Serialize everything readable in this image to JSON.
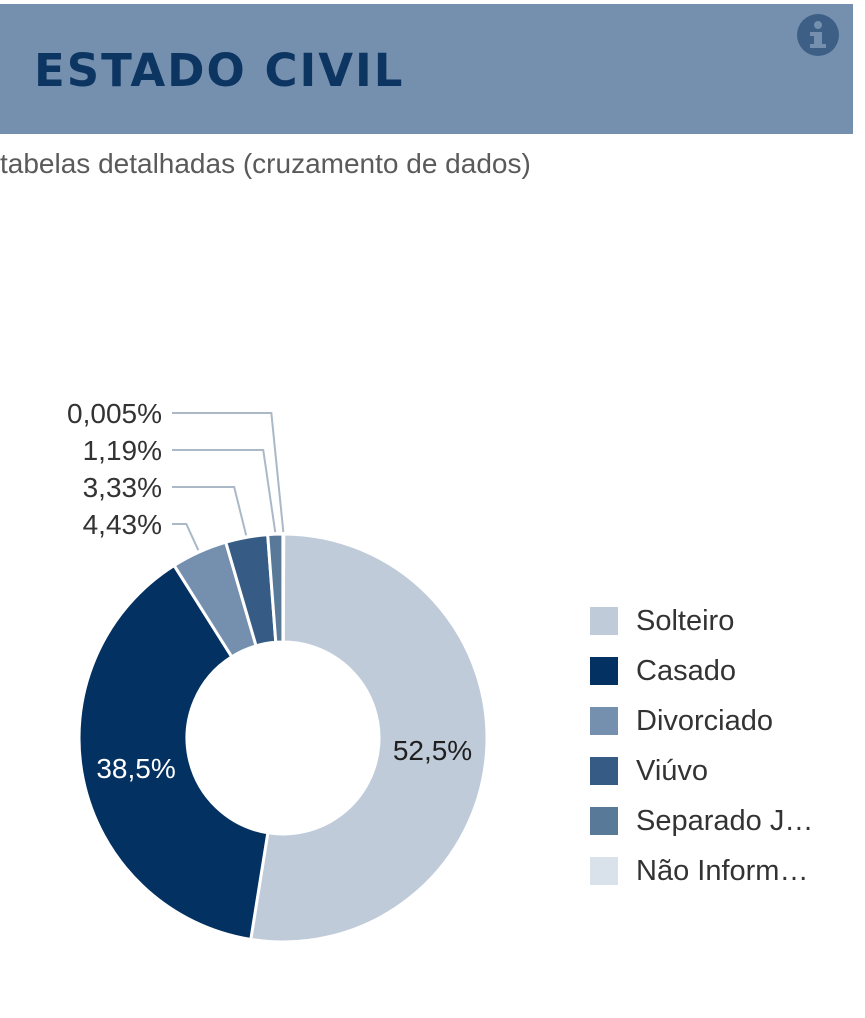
{
  "header": {
    "title": "ESTADO CIVIL",
    "info_icon": "info-circle-icon"
  },
  "subtitle": "tabelas detalhadas (cruzamento de dados)",
  "chart_data": {
    "type": "pie",
    "variant": "donut",
    "categories": [
      "Solteiro",
      "Casado",
      "Divorciado",
      "Viúvo",
      "Separado J…",
      "Não Inform…"
    ],
    "values": [
      52.5,
      38.5,
      4.43,
      3.33,
      1.19,
      0.005
    ],
    "labels": [
      "52,5%",
      "38,5%",
      "4,43%",
      "3,33%",
      "1,19%",
      "0,005%"
    ],
    "colors": [
      "#bfcbd9",
      "#033161",
      "#7590ae",
      "#365c86",
      "#587a98",
      "#d9e1ea"
    ],
    "legend_position": "right"
  }
}
